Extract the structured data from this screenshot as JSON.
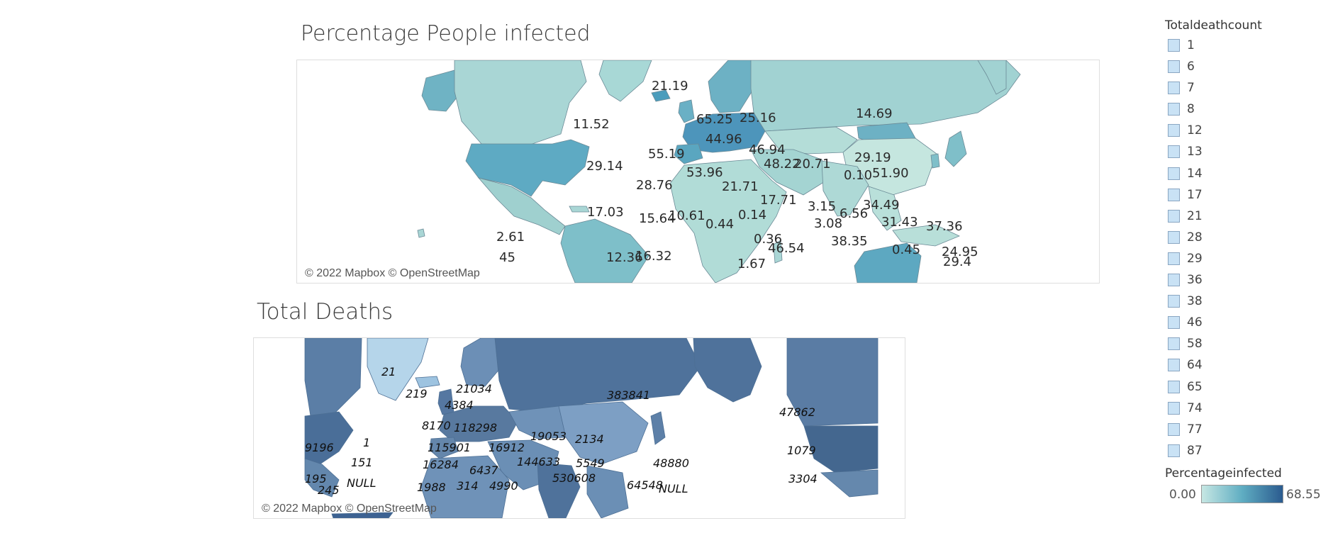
{
  "colors": {
    "ramp_low": "#c6e7e3",
    "ramp_mid": "#5fadc2",
    "ramp_high": "#2b5b8f",
    "deaths_dark": "#4f729b",
    "deaths_light": "#b5d5ea"
  },
  "top_map": {
    "title": "Percentage People infected",
    "attribution": "© 2022 Mapbox © OpenStreetMap",
    "labels": [
      "21.19",
      "11.52",
      "65.25",
      "25.16",
      "14.69",
      "44.96",
      "46.94",
      "55.19",
      "29.14",
      "29.19",
      "48.22",
      "20.71",
      "53.96",
      "0.10",
      "51.90",
      "28.76",
      "21.71",
      "17.71",
      "3.15",
      "34.49",
      "17.03",
      "15.64",
      "10.61",
      "0.14",
      "6.56",
      "2.61",
      "0.44",
      "3.08",
      "31.43",
      "37.36",
      "0.36",
      "38.35",
      "46.54",
      "45",
      "12.36",
      "16.32",
      "0.45",
      "24.95",
      "1.67",
      "29.4"
    ]
  },
  "bottom_map": {
    "title": "Total Deaths",
    "attribution": "© 2022 Mapbox © OpenStreetMap",
    "labels": [
      "21",
      "21034",
      "219",
      "383841",
      "4384",
      "47862",
      "8170",
      "118298",
      "1",
      "19053",
      "2134",
      "9196",
      "115901",
      "16912",
      "1079",
      "5549",
      "48880",
      "151",
      "16284",
      "144633",
      "6437",
      "195",
      "NULL",
      "530608",
      "245",
      "1988",
      "314",
      "4990",
      "64548",
      "NULL",
      "3304"
    ]
  },
  "legend_deaths": {
    "title": "Totaldeathcount",
    "items": [
      "1",
      "6",
      "7",
      "8",
      "12",
      "13",
      "14",
      "17",
      "21",
      "28",
      "29",
      "36",
      "38",
      "46",
      "58",
      "64",
      "65",
      "74",
      "77",
      "87"
    ]
  },
  "legend_percent": {
    "title": "Percentageinfected",
    "min": "0.00",
    "max": "68.55"
  }
}
